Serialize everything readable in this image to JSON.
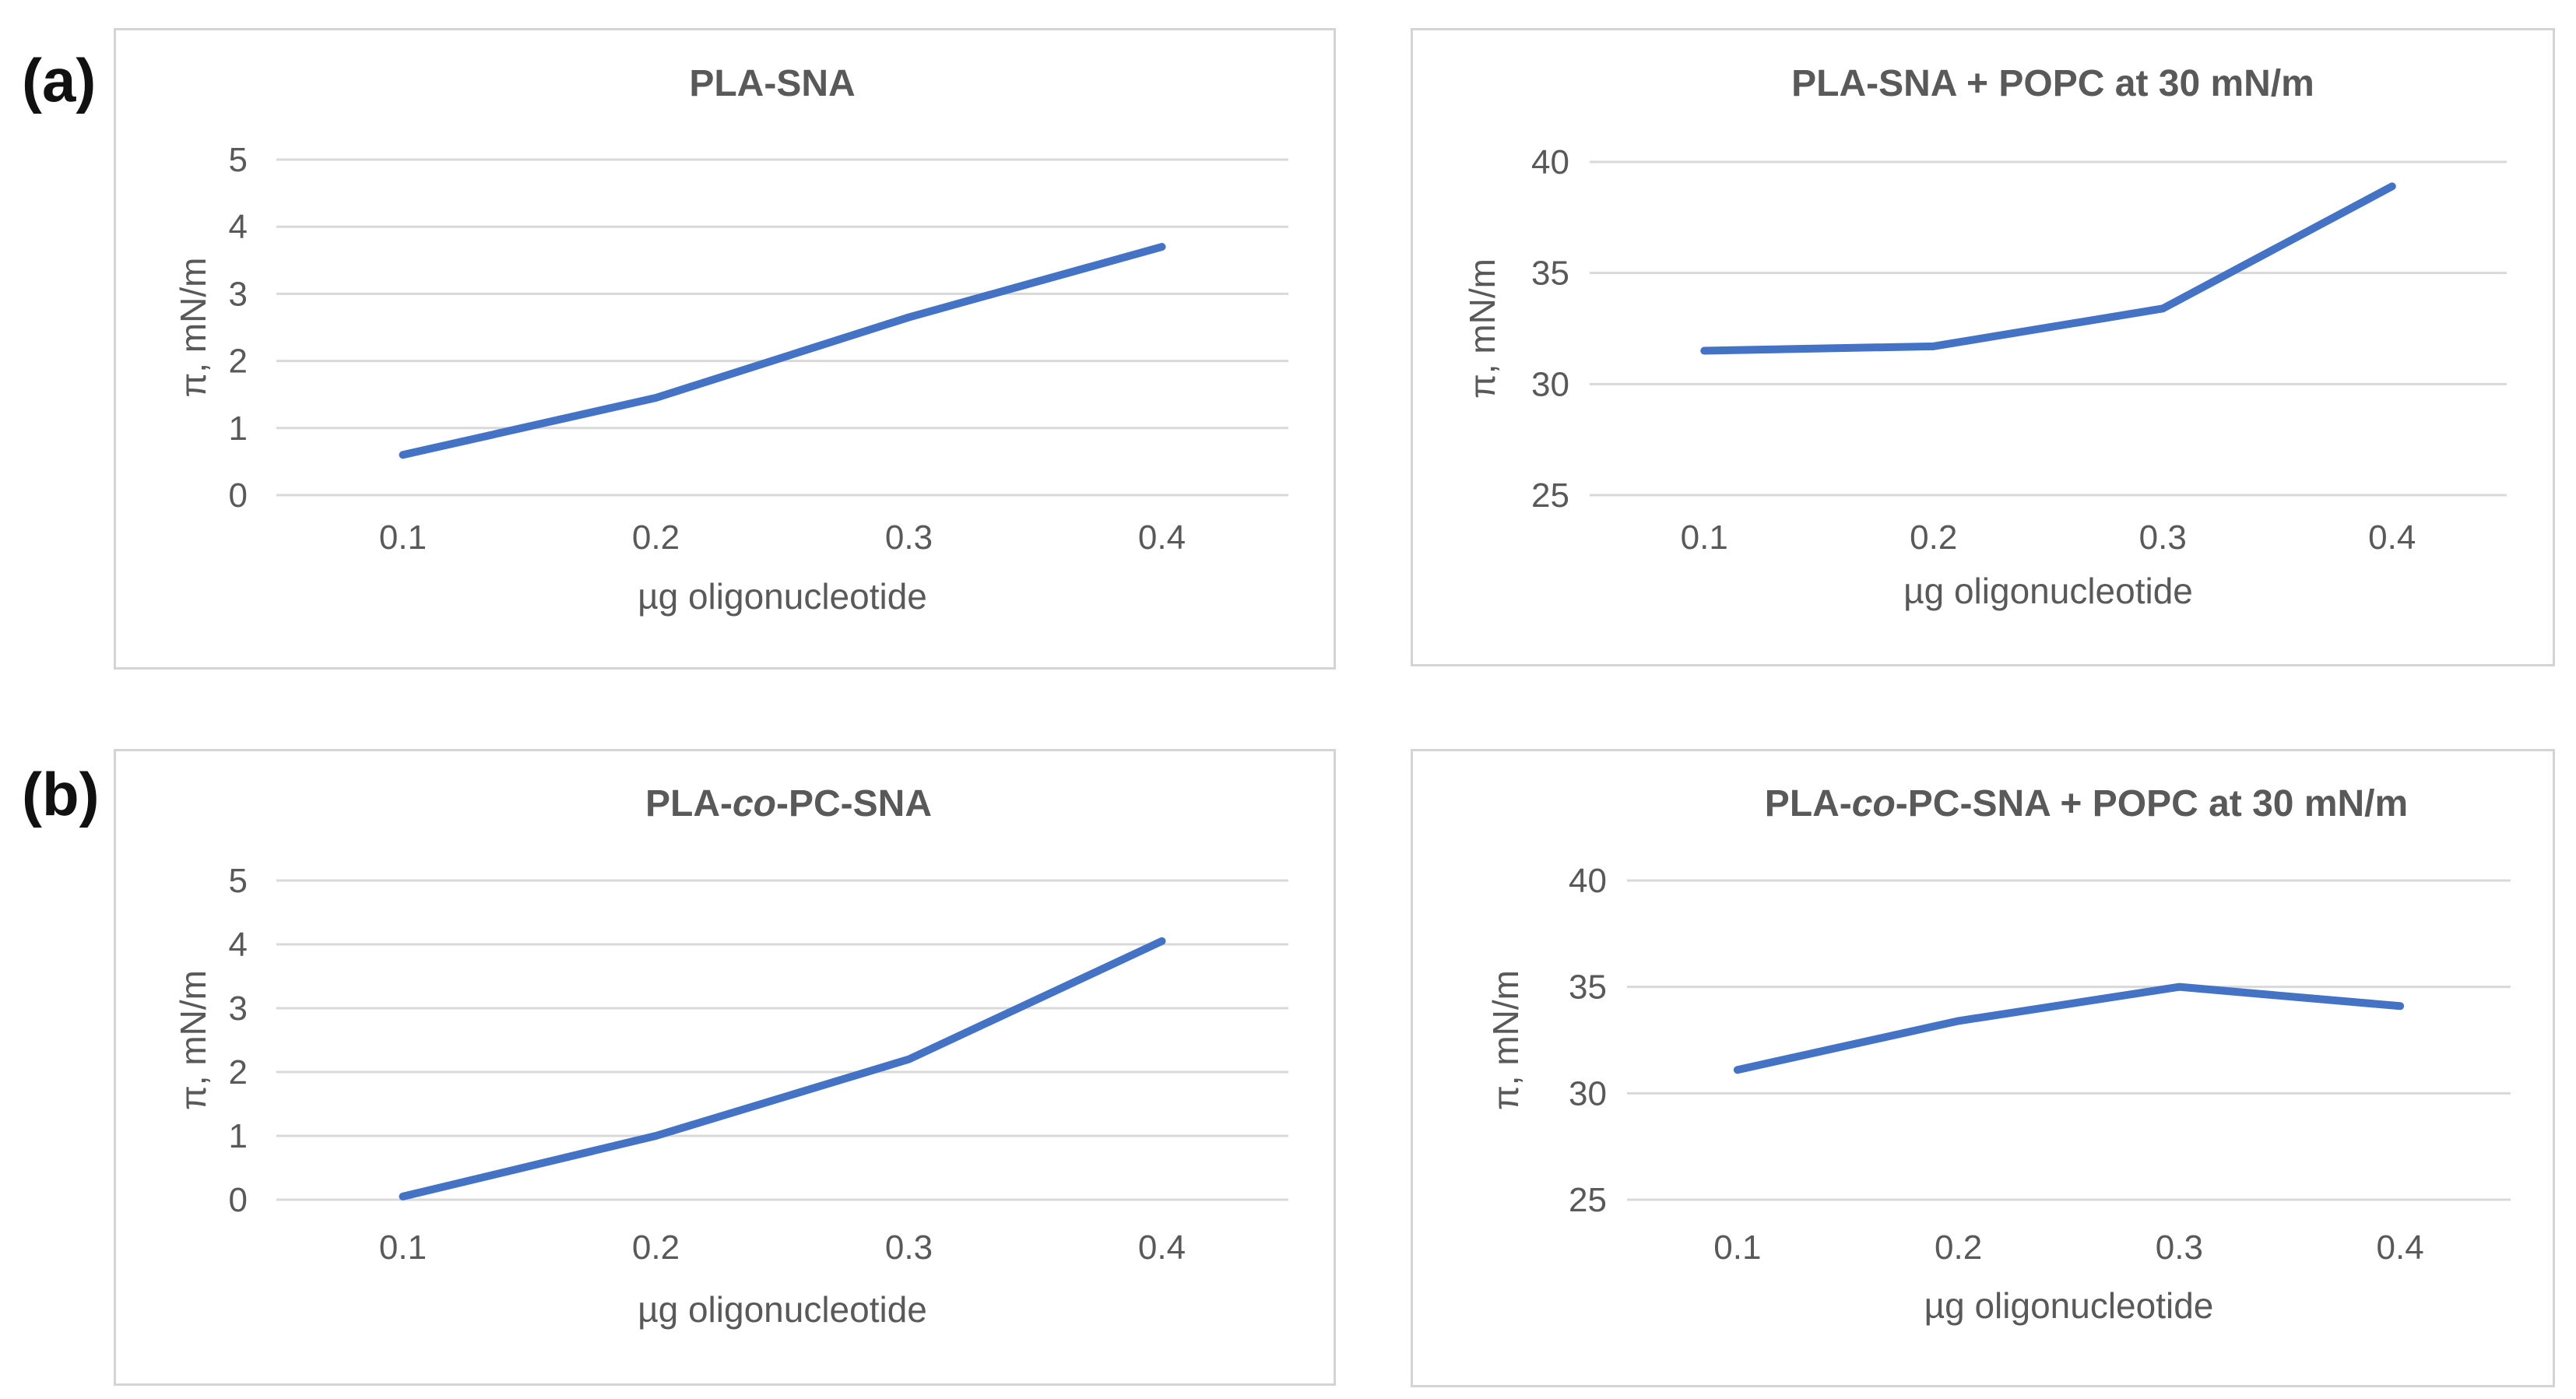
{
  "panel_labels": [
    "(a)",
    "(b)"
  ],
  "chart_data": [
    {
      "type": "line",
      "title": [
        "PLA-SNA"
      ],
      "xlabel": "µg oligonucleotide",
      "ylabel": "π, mN/m",
      "x": [
        "0.1",
        "0.2",
        "0.3",
        "0.4"
      ],
      "yticks": [
        "0",
        "1",
        "2",
        "3",
        "4",
        "5"
      ],
      "ylim": [
        0,
        5
      ],
      "series": [
        {
          "color": "#4472c4",
          "values": [
            0.6,
            1.45,
            2.65,
            3.7
          ]
        }
      ],
      "grid": true
    },
    {
      "type": "line",
      "title": [
        "PLA-SNA + POPC at 30 mN/m"
      ],
      "xlabel": "µg oligonucleotide",
      "ylabel": "π, mN/m",
      "x": [
        "0.1",
        "0.2",
        "0.3",
        "0.4"
      ],
      "yticks": [
        "25",
        "30",
        "35",
        "40"
      ],
      "ylim": [
        25,
        40
      ],
      "series": [
        {
          "color": "#4472c4",
          "values": [
            31.5,
            31.7,
            33.4,
            38.9
          ]
        }
      ],
      "grid": true
    },
    {
      "type": "line",
      "title": [
        "PLA-",
        "co",
        "-PC-SNA"
      ],
      "xlabel": "µg oligonucleotide",
      "ylabel": "π, mN/m",
      "x": [
        "0.1",
        "0.2",
        "0.3",
        "0.4"
      ],
      "yticks": [
        "0",
        "1",
        "2",
        "3",
        "4",
        "5"
      ],
      "ylim": [
        0,
        5
      ],
      "series": [
        {
          "color": "#4472c4",
          "values": [
            0.05,
            1.0,
            2.2,
            4.05
          ]
        }
      ],
      "grid": true
    },
    {
      "type": "line",
      "title": [
        "PLA-",
        "co",
        "-PC-SNA + POPC at 30 mN/m"
      ],
      "xlabel": "µg oligonucleotide",
      "ylabel": "π, mN/m",
      "x": [
        "0.1",
        "0.2",
        "0.3",
        "0.4"
      ],
      "yticks": [
        "25",
        "30",
        "35",
        "40"
      ],
      "ylim": [
        25,
        40
      ],
      "series": [
        {
          "color": "#4472c4",
          "values": [
            31.1,
            33.4,
            35.0,
            34.1
          ]
        }
      ],
      "grid": true
    }
  ]
}
